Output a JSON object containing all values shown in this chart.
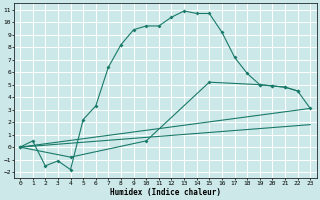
{
  "title": "",
  "xlabel": "Humidex (Indice chaleur)",
  "bg_color": "#cce8e8",
  "grid_color": "#ffffff",
  "line_color": "#1a7a6a",
  "xlim": [
    -0.5,
    23.5
  ],
  "ylim": [
    -2.5,
    11.5
  ],
  "xticks": [
    0,
    1,
    2,
    3,
    4,
    5,
    6,
    7,
    8,
    9,
    10,
    11,
    12,
    13,
    14,
    15,
    16,
    17,
    18,
    19,
    20,
    21,
    22,
    23
  ],
  "yticks": [
    -2,
    -1,
    0,
    1,
    2,
    3,
    4,
    5,
    6,
    7,
    8,
    9,
    10,
    11
  ],
  "curve1_x": [
    0,
    1,
    2,
    3,
    4,
    5,
    6,
    7,
    8,
    9,
    10,
    11,
    12,
    13,
    14,
    15,
    16,
    17,
    18,
    19,
    20,
    21,
    22
  ],
  "curve1_y": [
    0.0,
    0.5,
    -1.5,
    -1.1,
    -1.8,
    2.2,
    3.3,
    6.4,
    8.2,
    9.4,
    9.7,
    9.7,
    10.4,
    10.9,
    10.7,
    10.7,
    9.2,
    7.2,
    5.9,
    5.0,
    4.9,
    4.8,
    4.5
  ],
  "curve2_x": [
    0,
    4,
    10,
    15,
    19,
    20,
    21,
    22,
    23
  ],
  "curve2_y": [
    0.0,
    -0.8,
    0.5,
    5.2,
    5.0,
    4.9,
    4.8,
    4.5,
    3.1
  ],
  "curve3_x": [
    0,
    23
  ],
  "curve3_y": [
    0.0,
    3.1
  ],
  "curve4_x": [
    0,
    23
  ],
  "curve4_y": [
    0.0,
    1.8
  ]
}
